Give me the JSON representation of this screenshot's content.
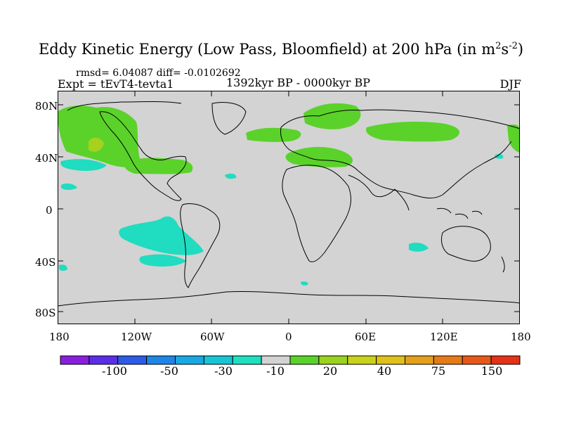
{
  "title": {
    "text": "Eddy Kinetic Energy (Low Pass, Bloomfield) at 200 hPa (in m",
    "unit_sup1": "2",
    "unit_mid": "s",
    "unit_sup2": "-2",
    "unit_close": ")"
  },
  "stats": "rmsd= 6.04087 diff= -0.0102692",
  "experiment": "Expt = tEvT4-tevta1",
  "period": "1392kyr BP - 0000kyr BP",
  "season": "DJF",
  "map": {
    "background": "#d3d3d3",
    "lat_ticks": [
      "80N",
      "40N",
      "0",
      "40S",
      "80S"
    ],
    "lon_ticks": [
      "180",
      "120W",
      "60W",
      "0",
      "60E",
      "120E",
      "180"
    ],
    "colors": {
      "green": "#5ad22a",
      "yellow_green": "#a6d21e",
      "cyan": "#20dcc0"
    }
  },
  "colorbar": {
    "colors": [
      "#8a1ee0",
      "#5a2ee6",
      "#2e5ae8",
      "#1e86e6",
      "#18a8e2",
      "#16c4d6",
      "#1ee0c0",
      "#d3d3d3",
      "#5ad22a",
      "#9ad21e",
      "#c8d21a",
      "#e0c01a",
      "#e4a01a",
      "#e67a18",
      "#e65818",
      "#e43216"
    ],
    "labels": [
      "-100",
      "-50",
      "-30",
      "-10",
      "20",
      "40",
      "75",
      "150"
    ]
  }
}
